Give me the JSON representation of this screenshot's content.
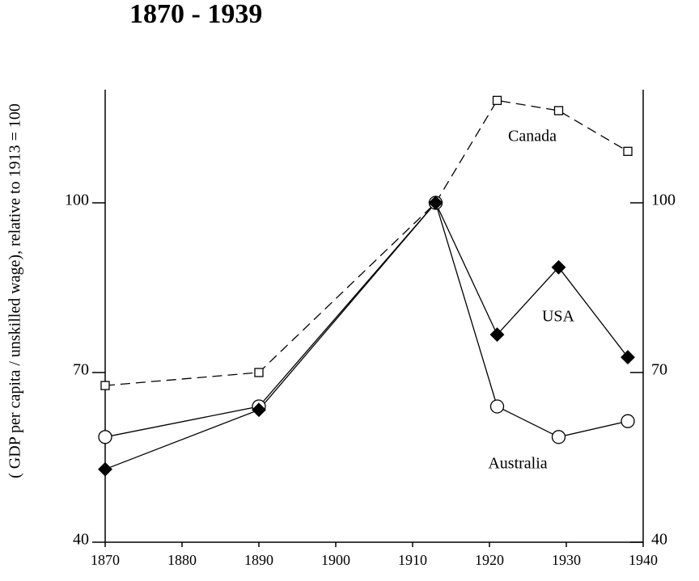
{
  "chart_data": {
    "type": "line",
    "title": "1870 - 1939",
    "y_label": "( GDP per capita / unskilled wage), relative to 1913 = 100",
    "x": [
      1870,
      1890,
      1913,
      1921,
      1929,
      1938
    ],
    "series": [
      {
        "name": "Canada",
        "color": "#000000",
        "dash": true,
        "marker": "square",
        "values": [
          67.7,
          70,
          100,
          118.1,
          116.3,
          109.1
        ]
      },
      {
        "name": "Australia",
        "color": "#000000",
        "dash": false,
        "marker": "circle",
        "values": [
          58.6,
          64,
          100,
          64,
          58.6,
          61.4
        ]
      },
      {
        "name": "USA",
        "color": "#000000",
        "dash": false,
        "marker": "diamond",
        "values": [
          52.9,
          63.4,
          100,
          76.7,
          88.6,
          72.7
        ]
      }
    ],
    "xlim": [
      1870,
      1940
    ],
    "xticks": [
      1870,
      1880,
      1890,
      1900,
      1910,
      1920,
      1930,
      1940
    ],
    "ylim": [
      40,
      120
    ],
    "yticks": [
      40,
      70,
      100
    ],
    "grid": false
  }
}
